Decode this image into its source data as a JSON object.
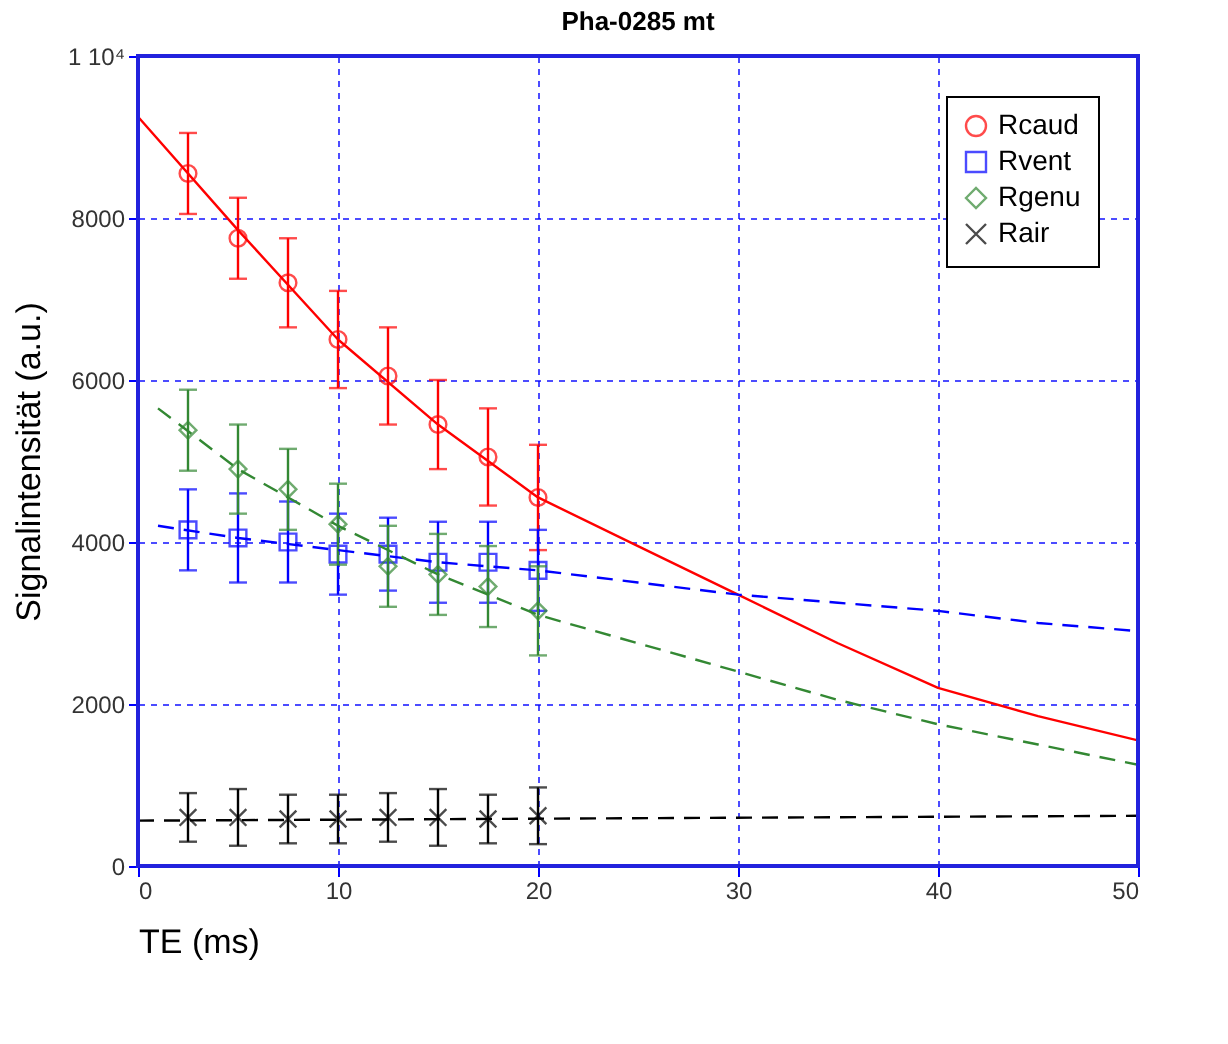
{
  "chart_data": {
    "type": "scatter",
    "title": "Pha-0285 mt",
    "xlabel": "TE (ms)",
    "ylabel": "Signalintensität (a.u.)",
    "xlim": [
      0,
      50
    ],
    "xticks": [
      0,
      10,
      20,
      30,
      40,
      50
    ],
    "ylim": [
      0,
      10000
    ],
    "yticks": [
      0,
      2000,
      4000,
      6000,
      8000,
      {
        "value": 10000,
        "label": "1 10⁴"
      }
    ],
    "grid": true,
    "legend": "top right",
    "series": [
      {
        "name": "Rcaud",
        "color": "#ff0000",
        "marker": "circle",
        "x": [
          2.5,
          5,
          7.5,
          10,
          12.5,
          15,
          17.5,
          20
        ],
        "values": [
          8550,
          7750,
          7200,
          6500,
          6050,
          5450,
          5050,
          4550
        ],
        "errors": [
          500,
          500,
          550,
          600,
          600,
          550,
          600,
          650
        ]
      },
      {
        "name": "Rvent",
        "color": "#0000ff",
        "marker": "square",
        "x": [
          2.5,
          5,
          7.5,
          10,
          12.5,
          15,
          17.5,
          20
        ],
        "values": [
          4150,
          4050,
          4000,
          3850,
          3850,
          3750,
          3750,
          3650
        ],
        "errors": [
          500,
          550,
          500,
          500,
          450,
          500,
          500,
          500
        ]
      },
      {
        "name": "Rgenu",
        "color": "#338833",
        "marker": "diamond",
        "x": [
          2.5,
          5,
          7.5,
          10,
          12.5,
          15,
          17.5,
          20
        ],
        "values": [
          5380,
          4900,
          4650,
          4220,
          3700,
          3600,
          3450,
          3150
        ],
        "errors": [
          500,
          550,
          500,
          500,
          500,
          500,
          500,
          550
        ]
      },
      {
        "name": "Rair",
        "color": "#000000",
        "marker": "cross",
        "x": [
          2.5,
          5,
          7.5,
          10,
          12.5,
          15,
          17.5,
          20
        ],
        "values": [
          600,
          600,
          580,
          580,
          600,
          600,
          580,
          620
        ],
        "errors": [
          300,
          350,
          300,
          300,
          300,
          350,
          300,
          350
        ]
      },
      {
        "type": "line",
        "color": "#ff0000",
        "line_style": "solid",
        "x": [
          0,
          5,
          10,
          15,
          20,
          25,
          30,
          35,
          40,
          45,
          50
        ],
        "values": [
          9250,
          7850,
          6500,
          5450,
          4550,
          3950,
          3350,
          2750,
          2200,
          1850,
          1550
        ]
      },
      {
        "type": "line",
        "color": "#0000ff",
        "line_style": "dashed",
        "x": [
          1,
          5,
          10,
          15,
          20,
          25,
          30,
          35,
          40,
          45,
          50
        ],
        "values": [
          4200,
          4050,
          3900,
          3750,
          3650,
          3500,
          3350,
          3250,
          3150,
          3000,
          2900
        ]
      },
      {
        "type": "line",
        "color": "#338833",
        "line_style": "dashed",
        "x": [
          1,
          5,
          10,
          15,
          20,
          25,
          30,
          35,
          40,
          45,
          50
        ],
        "values": [
          5650,
          4900,
          4200,
          3600,
          3100,
          2750,
          2400,
          2050,
          1750,
          1500,
          1250
        ]
      },
      {
        "type": "line",
        "color": "#000000",
        "line_style": "dashed",
        "x": [
          0,
          50
        ],
        "values": [
          560,
          620
        ]
      }
    ]
  }
}
